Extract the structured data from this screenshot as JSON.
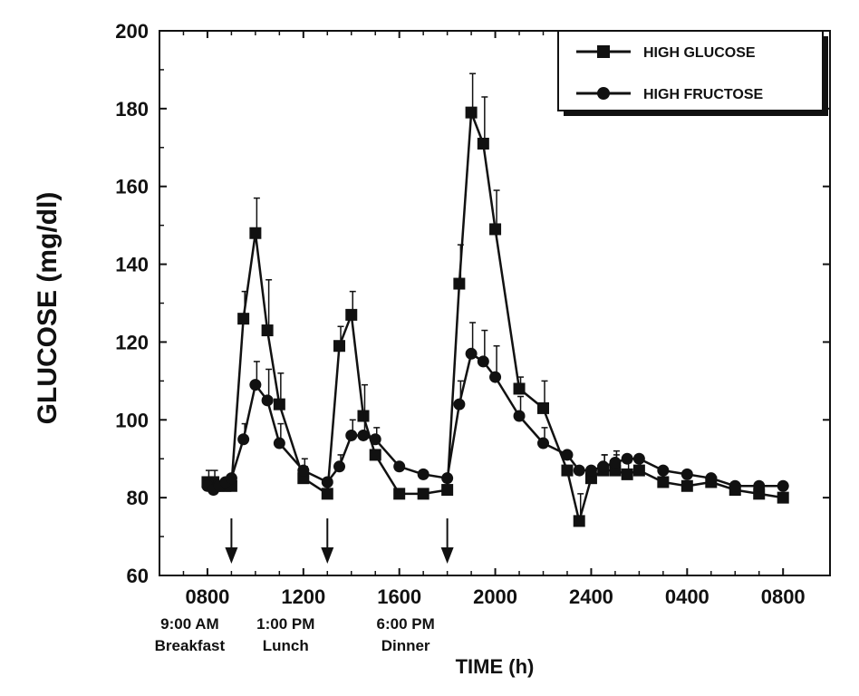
{
  "chart_data": {
    "type": "line",
    "xlabel": "TIME (h)",
    "ylabel": "GLUCOSE (mg/dl)",
    "ylim": [
      60,
      200
    ],
    "xlim": [
      6.0,
      32.0
    ],
    "yticks": [
      60,
      80,
      100,
      120,
      140,
      160,
      180,
      200
    ],
    "x_ticks": [
      {
        "x": 8,
        "label": "0800"
      },
      {
        "x": 12,
        "label": "1200"
      },
      {
        "x": 16,
        "label": "1600"
      },
      {
        "x": 20,
        "label": "2000"
      },
      {
        "x": 24,
        "label": "2400"
      },
      {
        "x": 28,
        "label": "0400"
      },
      {
        "x": 32,
        "label": "0800"
      }
    ],
    "grid": false,
    "legend_position": "top-right",
    "meals": [
      {
        "x": 9,
        "time": "9:00 AM",
        "name": "Breakfast"
      },
      {
        "x": 13,
        "time": "1:00 PM",
        "name": "Lunch"
      },
      {
        "x": 18,
        "time": "6:00 PM",
        "name": "Dinner"
      }
    ],
    "series": [
      {
        "name": "HIGH GLUCOSE",
        "marker": "square",
        "color": "#111111",
        "x": [
          8.0,
          8.25,
          8.5,
          8.75,
          9.0,
          9.5,
          10.0,
          10.5,
          11.0,
          12.0,
          13.0,
          13.5,
          14.0,
          14.5,
          15.0,
          16.0,
          17.0,
          18.0,
          18.5,
          19.0,
          19.5,
          20.0,
          21.0,
          22.0,
          23.0,
          23.5,
          24.0,
          24.5,
          25.0,
          25.5,
          26.0,
          27.0,
          28.0,
          29.0,
          30.0,
          31.0,
          32.0
        ],
        "values": [
          84,
          84,
          83,
          83,
          83,
          126,
          148,
          123,
          104,
          85,
          81,
          119,
          127,
          101,
          91,
          81,
          81,
          82,
          135,
          179,
          171,
          149,
          108,
          103,
          87,
          74,
          85,
          87,
          87,
          86,
          87,
          84,
          83,
          84,
          82,
          81,
          80
        ],
        "error_up": [
          3,
          3,
          2,
          2,
          2,
          7,
          9,
          13,
          8,
          3,
          2,
          5,
          6,
          8,
          2,
          2,
          2,
          2,
          10,
          10,
          12,
          10,
          3,
          7,
          2,
          7,
          2,
          4,
          4,
          3,
          3,
          2,
          2,
          2,
          2,
          2,
          2
        ]
      },
      {
        "name": "HIGH FRUCTOSE",
        "marker": "circle",
        "color": "#111111",
        "x": [
          8.0,
          8.25,
          8.5,
          8.75,
          9.0,
          9.5,
          10.0,
          10.5,
          11.0,
          12.0,
          13.0,
          13.5,
          14.0,
          14.5,
          15.0,
          16.0,
          17.0,
          18.0,
          18.5,
          19.0,
          19.5,
          20.0,
          21.0,
          22.0,
          23.0,
          23.5,
          24.0,
          24.5,
          25.0,
          25.5,
          26.0,
          27.0,
          28.0,
          29.0,
          30.0,
          31.0,
          32.0
        ],
        "values": [
          83,
          82,
          83,
          84,
          85,
          95,
          109,
          105,
          94,
          87,
          84,
          88,
          96,
          96,
          95,
          88,
          86,
          85,
          104,
          117,
          115,
          111,
          101,
          94,
          91,
          87,
          87,
          88,
          89,
          90,
          90,
          87,
          86,
          85,
          83,
          83,
          83
        ],
        "error_up": [
          2,
          2,
          2,
          2,
          2,
          4,
          6,
          8,
          5,
          3,
          2,
          3,
          4,
          6,
          3,
          2,
          2,
          2,
          6,
          8,
          8,
          8,
          5,
          4,
          2,
          2,
          2,
          3,
          3,
          2,
          2,
          2,
          2,
          2,
          2,
          2,
          2
        ]
      }
    ]
  }
}
